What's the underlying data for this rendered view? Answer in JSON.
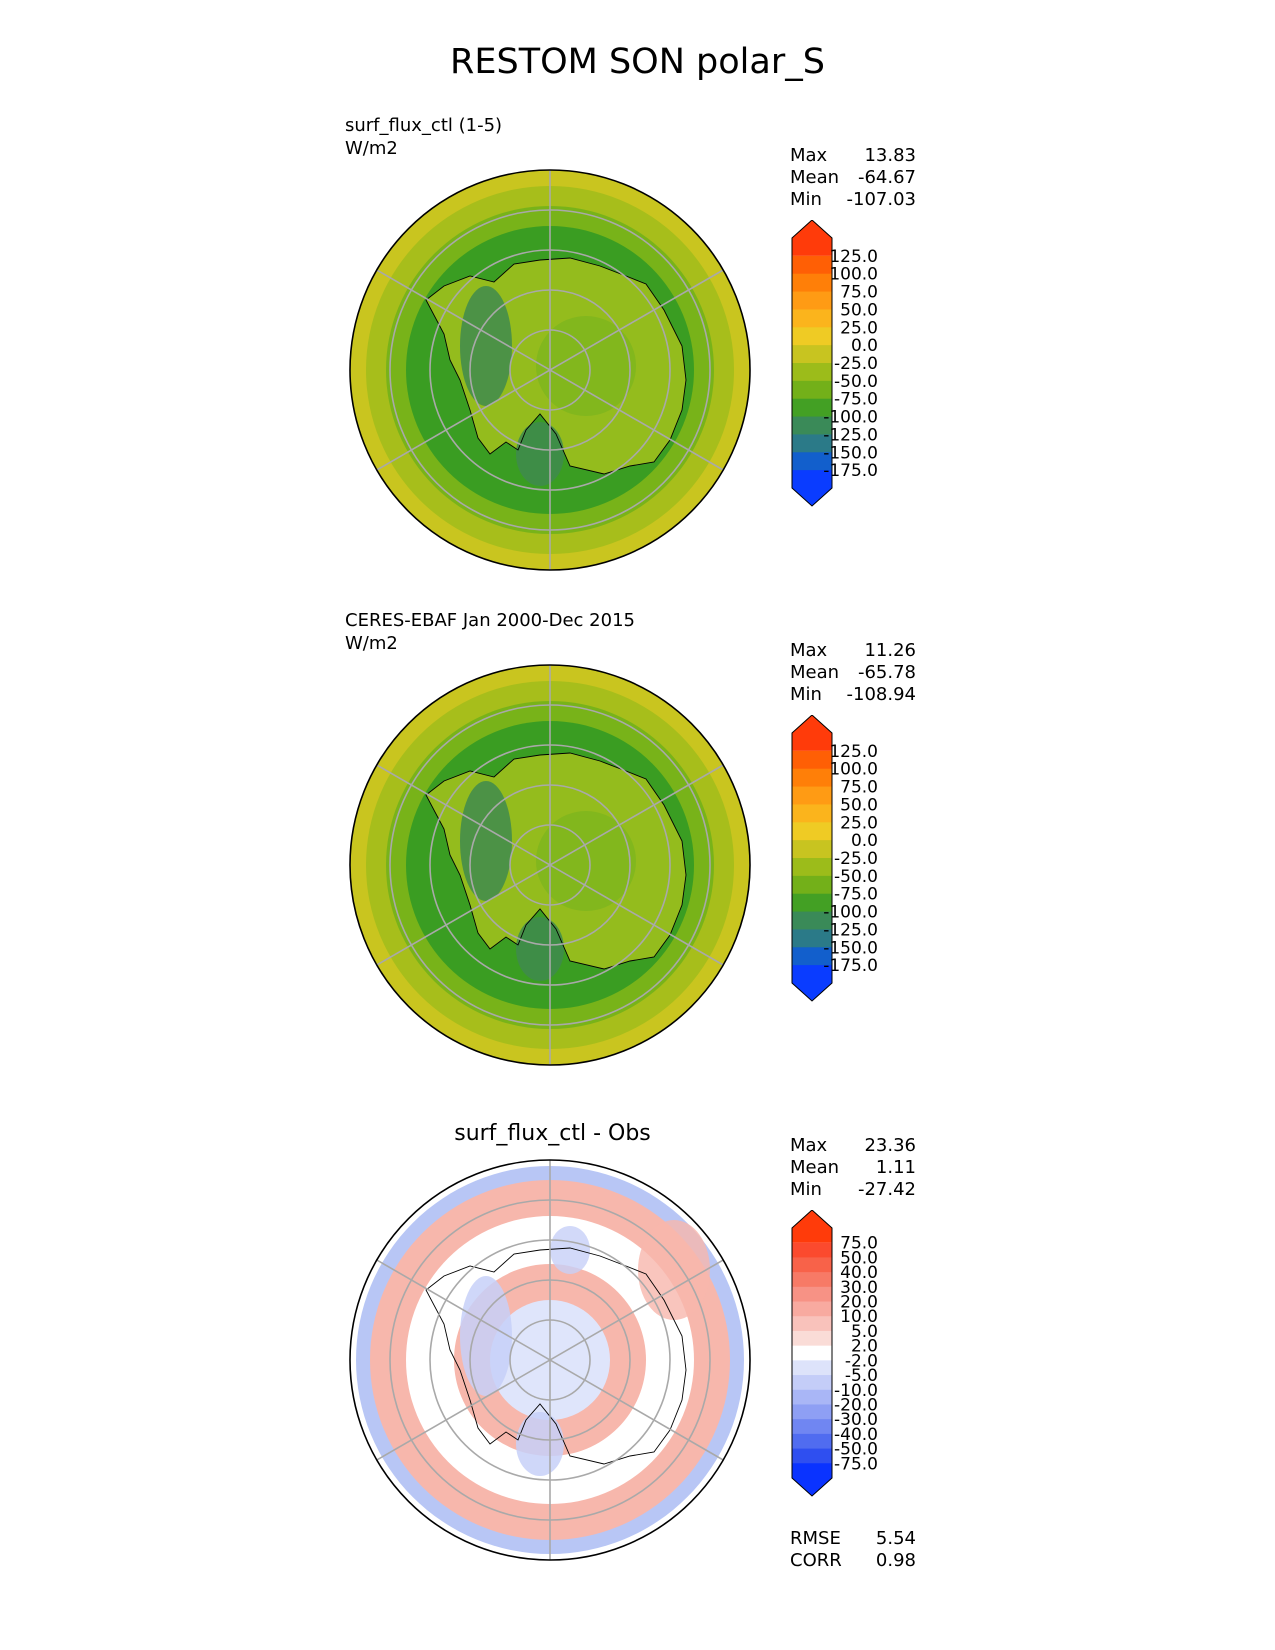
{
  "title": "RESTOM SON polar_S",
  "panels": [
    {
      "title_lines": [
        "surf_flux_ctl (1-5)",
        "W/m2"
      ],
      "stats": [
        {
          "label": "Max",
          "value": "13.83"
        },
        {
          "label": "Mean",
          "value": "-64.67"
        },
        {
          "label": "Min",
          "value": "-107.03"
        }
      ],
      "colorbar": {
        "ticks": [
          "125.0",
          "100.0",
          "75.0",
          "50.0",
          "25.0",
          "0.0",
          "-25.0",
          "-50.0",
          "-75.0",
          "-100.0",
          "-125.0",
          "-150.0",
          "-175.0"
        ],
        "colors": [
          "#ff3b0a",
          "#ff5f05",
          "#ff7f08",
          "#ff9b14",
          "#fbb41c",
          "#efcb24",
          "#c8c420",
          "#9cbc1a",
          "#73b019",
          "#43a024",
          "#3a8a58",
          "#2b7a88",
          "#125fcc",
          "#0a3cff"
        ]
      },
      "map": {
        "center": "#7fb61e",
        "land": "#a4c21c",
        "pole": "#b5c51e",
        "ring1": "#3a9d22",
        "ring2": "#78b319",
        "ring3": "#a7be1b",
        "outer": "#c9c51f",
        "patch": "#3f8b4e"
      }
    },
    {
      "title_lines": [
        "CERES-EBAF Jan 2000-Dec 2015",
        "W/m2"
      ],
      "stats": [
        {
          "label": "Max",
          "value": "11.26"
        },
        {
          "label": "Mean",
          "value": "-65.78"
        },
        {
          "label": "Min",
          "value": "-108.94"
        }
      ],
      "colorbar": {
        "ticks": [
          "125.0",
          "100.0",
          "75.0",
          "50.0",
          "25.0",
          "0.0",
          "-25.0",
          "-50.0",
          "-75.0",
          "-100.0",
          "-125.0",
          "-150.0",
          "-175.0"
        ],
        "colors": [
          "#ff3b0a",
          "#ff5f05",
          "#ff7f08",
          "#ff9b14",
          "#fbb41c",
          "#efcb24",
          "#c8c420",
          "#9cbc1a",
          "#73b019",
          "#43a024",
          "#3a8a58",
          "#2b7a88",
          "#125fcc",
          "#0a3cff"
        ]
      },
      "map": {
        "center": "#7fb61e",
        "land": "#a4c21c",
        "pole": "#b5c51e",
        "ring1": "#3a9d22",
        "ring2": "#78b319",
        "ring3": "#a7be1b",
        "outer": "#c9c51f",
        "patch": "#3f8b4e"
      }
    },
    {
      "title": "surf_flux_ctl - Obs",
      "stats": [
        {
          "label": "Max",
          "value": "23.36"
        },
        {
          "label": "Mean",
          "value": "1.11"
        },
        {
          "label": "Min",
          "value": "-27.42"
        }
      ],
      "colorbar": {
        "ticks": [
          "75.0",
          "50.0",
          "40.0",
          "30.0",
          "20.0",
          "10.0",
          "5.0",
          "2.0",
          "-2.0",
          "-5.0",
          "-10.0",
          "-20.0",
          "-30.0",
          "-40.0",
          "-50.0",
          "-75.0"
        ],
        "colors": [
          "#ff3b0a",
          "#fb4a2e",
          "#f86249",
          "#f77a66",
          "#f79285",
          "#f8aaa0",
          "#f9c2bb",
          "#fadcd7",
          "#ffffff",
          "#dde3fa",
          "#c4cdf8",
          "#a9b6f6",
          "#8e9ff4",
          "#7086f2",
          "#506cf0",
          "#2f4ff0",
          "#0a33ff"
        ]
      },
      "map": {
        "center": "#ffffff",
        "land": "#ffffff",
        "pole": "#dfe5fb",
        "ring1": "#f7b7ac",
        "ring2": "#ffffff",
        "ring3": "#f7b7ac",
        "outer": "#ffffff",
        "patch": "#c7d0f8",
        "edge": "#b8c6f5"
      },
      "extra_stats": [
        {
          "label": "RMSE",
          "value": "5.54"
        },
        {
          "label": "CORR",
          "value": "0.98"
        }
      ]
    }
  ]
}
